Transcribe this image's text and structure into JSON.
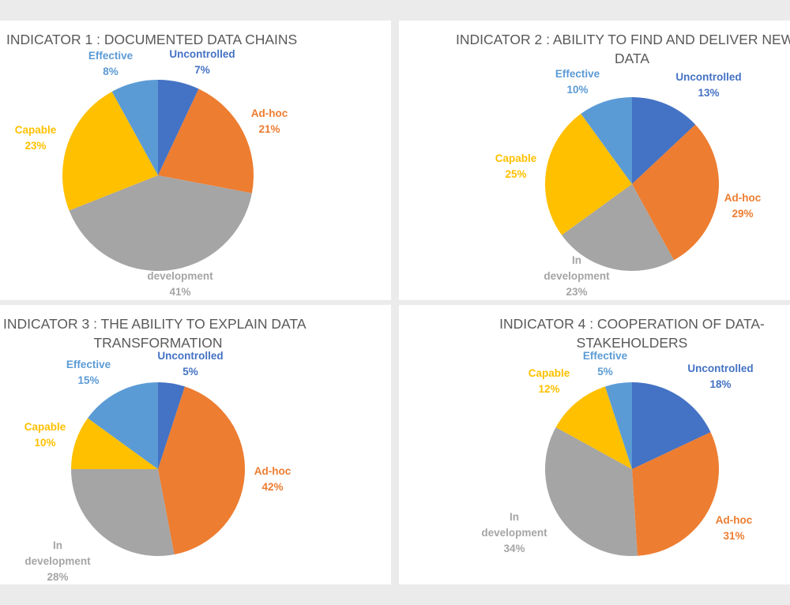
{
  "colors": {
    "Uncontrolled": "#4472c4",
    "Ad-hoc": "#ed7d31",
    "In development": "#a5a5a5",
    "Capable": "#ffc000",
    "Effective": "#5b9bd5"
  },
  "chart_data": [
    {
      "type": "pie",
      "title": [
        "INDICATOR 1 : DOCUMENTED DATA CHAINS"
      ],
      "categories": [
        "Uncontrolled",
        "Ad-hoc",
        "In development",
        "Capable",
        "Effective"
      ],
      "labels": [
        "Uncontrolled",
        "Ad-hoc",
        "development",
        "Capable",
        "Effective"
      ],
      "values": [
        7,
        21,
        41,
        23,
        8
      ],
      "value_labels": [
        "7%",
        "21%",
        "41%",
        "23%",
        "8%"
      ]
    },
    {
      "type": "pie",
      "title": [
        "INDICATOR 2 : ABILITY TO FIND AND DELIVER NEW",
        "DATA"
      ],
      "categories": [
        "Uncontrolled",
        "Ad-hoc",
        "In development",
        "Capable",
        "Effective"
      ],
      "labels": [
        "Uncontrolled",
        "Ad-hoc",
        "In development",
        "Capable",
        "Effective"
      ],
      "values": [
        13,
        29,
        23,
        25,
        10
      ],
      "value_labels": [
        "13%",
        "29%",
        "23%",
        "25%",
        "10%"
      ]
    },
    {
      "type": "pie",
      "title": [
        "INDICATOR 3 : THE ABILITY TO EXPLAIN DATA",
        "TRANSFORMATION"
      ],
      "categories": [
        "Uncontrolled",
        "Ad-hoc",
        "In development",
        "Capable",
        "Effective"
      ],
      "labels": [
        "Uncontrolled",
        "Ad-hoc",
        "In development",
        "Capable",
        "Effective"
      ],
      "values": [
        5,
        42,
        28,
        10,
        15
      ],
      "value_labels": [
        "5%",
        "42%",
        "28%",
        "10%",
        "15%"
      ]
    },
    {
      "type": "pie",
      "title": [
        "INDICATOR 4 : COOPERATION OF DATA-",
        "STAKEHOLDERS"
      ],
      "categories": [
        "Uncontrolled",
        "Ad-hoc",
        "In development",
        "Capable",
        "Effective"
      ],
      "labels": [
        "Uncontrolled",
        "Ad-hoc",
        "In development",
        "Capable",
        "Effective"
      ],
      "values": [
        18,
        31,
        34,
        12,
        5
      ],
      "value_labels": [
        "18%",
        "31%",
        "34%",
        "12%",
        "5%"
      ]
    }
  ]
}
